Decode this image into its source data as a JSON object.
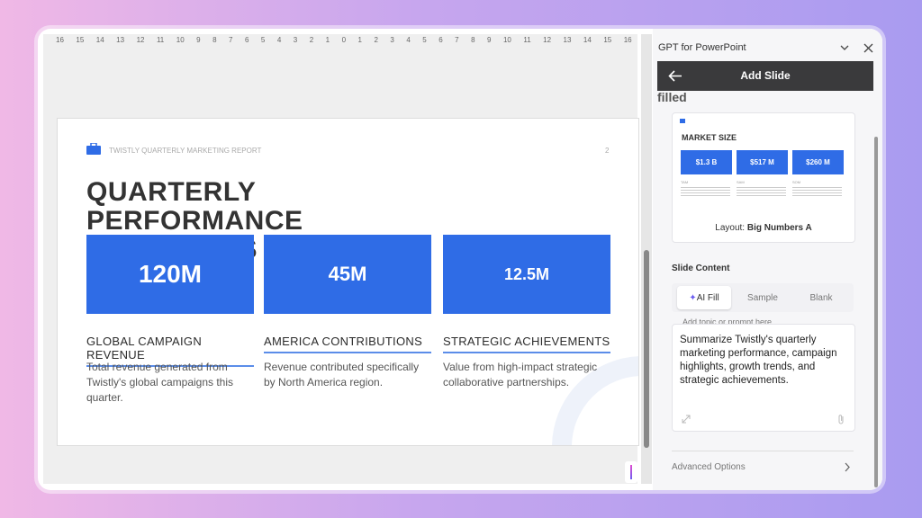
{
  "ruler": [
    16,
    15,
    14,
    13,
    12,
    11,
    10,
    9,
    8,
    7,
    6,
    5,
    4,
    3,
    2,
    1,
    0,
    1,
    2,
    3,
    4,
    5,
    6,
    7,
    8,
    9,
    10,
    11,
    12,
    13,
    14,
    15,
    16
  ],
  "slide": {
    "header": "TWISTLY QUARTERLY MARKETING REPORT",
    "page": "2",
    "title": "QUARTERLY PERFORMANCE HIGHLIGHTS",
    "cards": [
      {
        "value": "120M",
        "label": "GLOBAL CAMPAIGN REVENUE",
        "description": "Total revenue generated from Twistly's global campaigns this quarter."
      },
      {
        "value": "45M",
        "label": "AMERICA CONTRIBUTIONS",
        "description": "Revenue contributed specifically by North America region."
      },
      {
        "value": "12.5M",
        "label": "STRATEGIC ACHIEVEMENTS",
        "description": "Value from high-impact strategic collaborative partnerships."
      }
    ]
  },
  "panel": {
    "app_title": "GPT for PowerPoint",
    "header": "Add Slide",
    "clipped_heading": "filled",
    "preview": {
      "title": "MARKET SIZE",
      "boxes": [
        {
          "value": "$1.3 B",
          "label": "TAM"
        },
        {
          "value": "$517 M",
          "label": "SAM"
        },
        {
          "value": "$260 M",
          "label": "SOM"
        }
      ],
      "layout_label": "Layout:",
      "layout_name": "Big Numbers A"
    },
    "section": "Slide Content",
    "tabs": [
      "AI Fill",
      "Sample",
      "Blank"
    ],
    "placeholder": "Add topic or prompt here",
    "prompt": "Summarize Twistly's quarterly marketing performance, campaign highlights, growth trends, and strategic achievements.",
    "advanced": "Advanced Options"
  }
}
